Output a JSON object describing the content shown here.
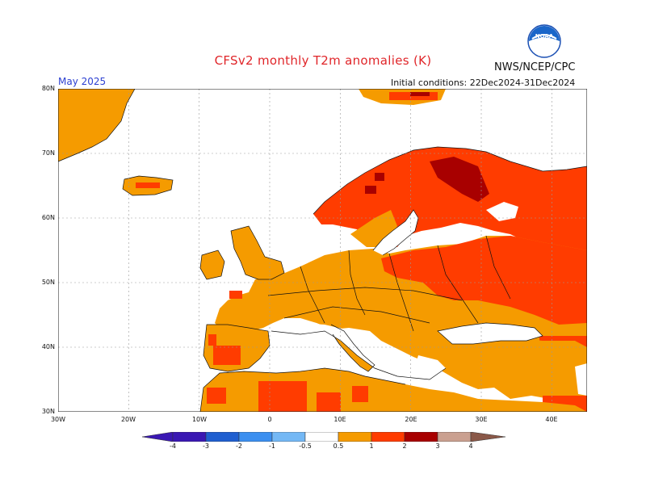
{
  "header": {
    "title": "CFSv2 monthly T2m anomalies (K)",
    "agency": "NWS/NCEP/CPC",
    "logo_text": "NOAA",
    "valid_month": "May 2025",
    "init_conditions": "Initial conditions: 22Dec2024-31Dec2024"
  },
  "map": {
    "region": "Europe",
    "lon_range": [
      -30,
      45
    ],
    "lat_range": [
      30,
      80
    ],
    "lat_labels": [
      "80N",
      "70N",
      "60N",
      "50N",
      "40N",
      "30N"
    ],
    "lon_labels": [
      "30W",
      "20W",
      "10W",
      "0",
      "10E",
      "20E",
      "30E",
      "40E"
    ],
    "grid": true,
    "anomaly_colors": {
      "0.5-1": "#f59b00",
      "1-2": "#ff3c00",
      "2-3": "#a80000",
      "3-4": "#caa090"
    }
  },
  "colorbar": {
    "labels": [
      "-4",
      "-3",
      "-2",
      "-1",
      "-0.5",
      "0.5",
      "1",
      "2",
      "3",
      "4"
    ],
    "colors": [
      "#3a18b3",
      "#1f5fd0",
      "#3b8ff0",
      "#74b8f5",
      "#ffffff",
      "#f59b00",
      "#ff3c00",
      "#a80000",
      "#caa090",
      "#8a5848"
    ]
  }
}
